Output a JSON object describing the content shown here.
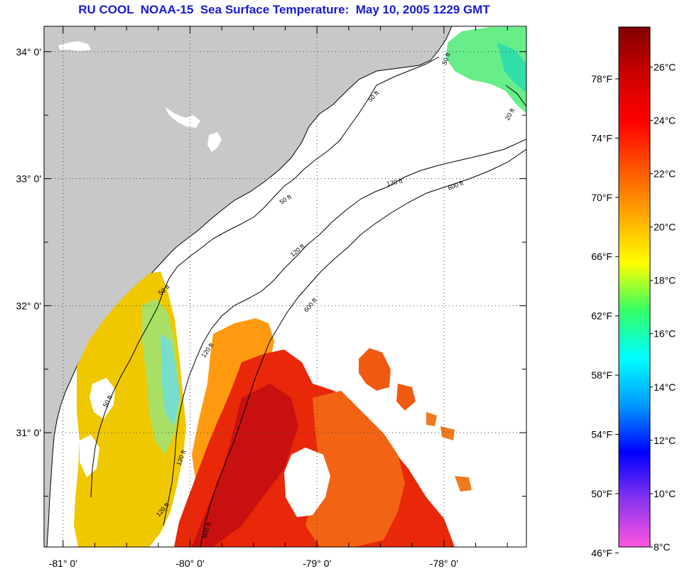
{
  "title": "RU COOL  NOAA-15  Sea Surface Temperature:  May 10, 2005 1229 GMT",
  "map": {
    "lat_labels": [
      "34° 0'",
      "33° 0'",
      "32° 0'",
      "31° 0'"
    ],
    "lon_labels": [
      "-81° 0'",
      "-80° 0'",
      "-79° 0'",
      "-78° 0'"
    ],
    "lat_range": [
      30.1,
      34.2
    ],
    "lon_range": [
      -81.15,
      -77.35
    ],
    "land_color": "#c8c8c8",
    "contour_labels": {
      "c50": "50 ft",
      "c120": "120 ft",
      "c600": "600 ft"
    }
  },
  "colorbar": {
    "fahrenheit_labels": [
      "78°F",
      "74°F",
      "70°F",
      "66°F",
      "62°F",
      "58°F",
      "54°F",
      "50°F",
      "46°F"
    ],
    "celsius_labels": [
      "26°C",
      "24°C",
      "22°C",
      "20°C",
      "18°C",
      "16°C",
      "14°C",
      "12°C",
      "10°C",
      "8°C"
    ],
    "range_c": [
      8,
      27.5
    ],
    "stops": [
      "#ff55dd",
      "#8833ee",
      "#0000ff",
      "#0099ff",
      "#00ffff",
      "#33ff66",
      "#ffff00",
      "#ffaa00",
      "#ff5500",
      "#ff0000",
      "#cc0000",
      "#800000"
    ]
  }
}
